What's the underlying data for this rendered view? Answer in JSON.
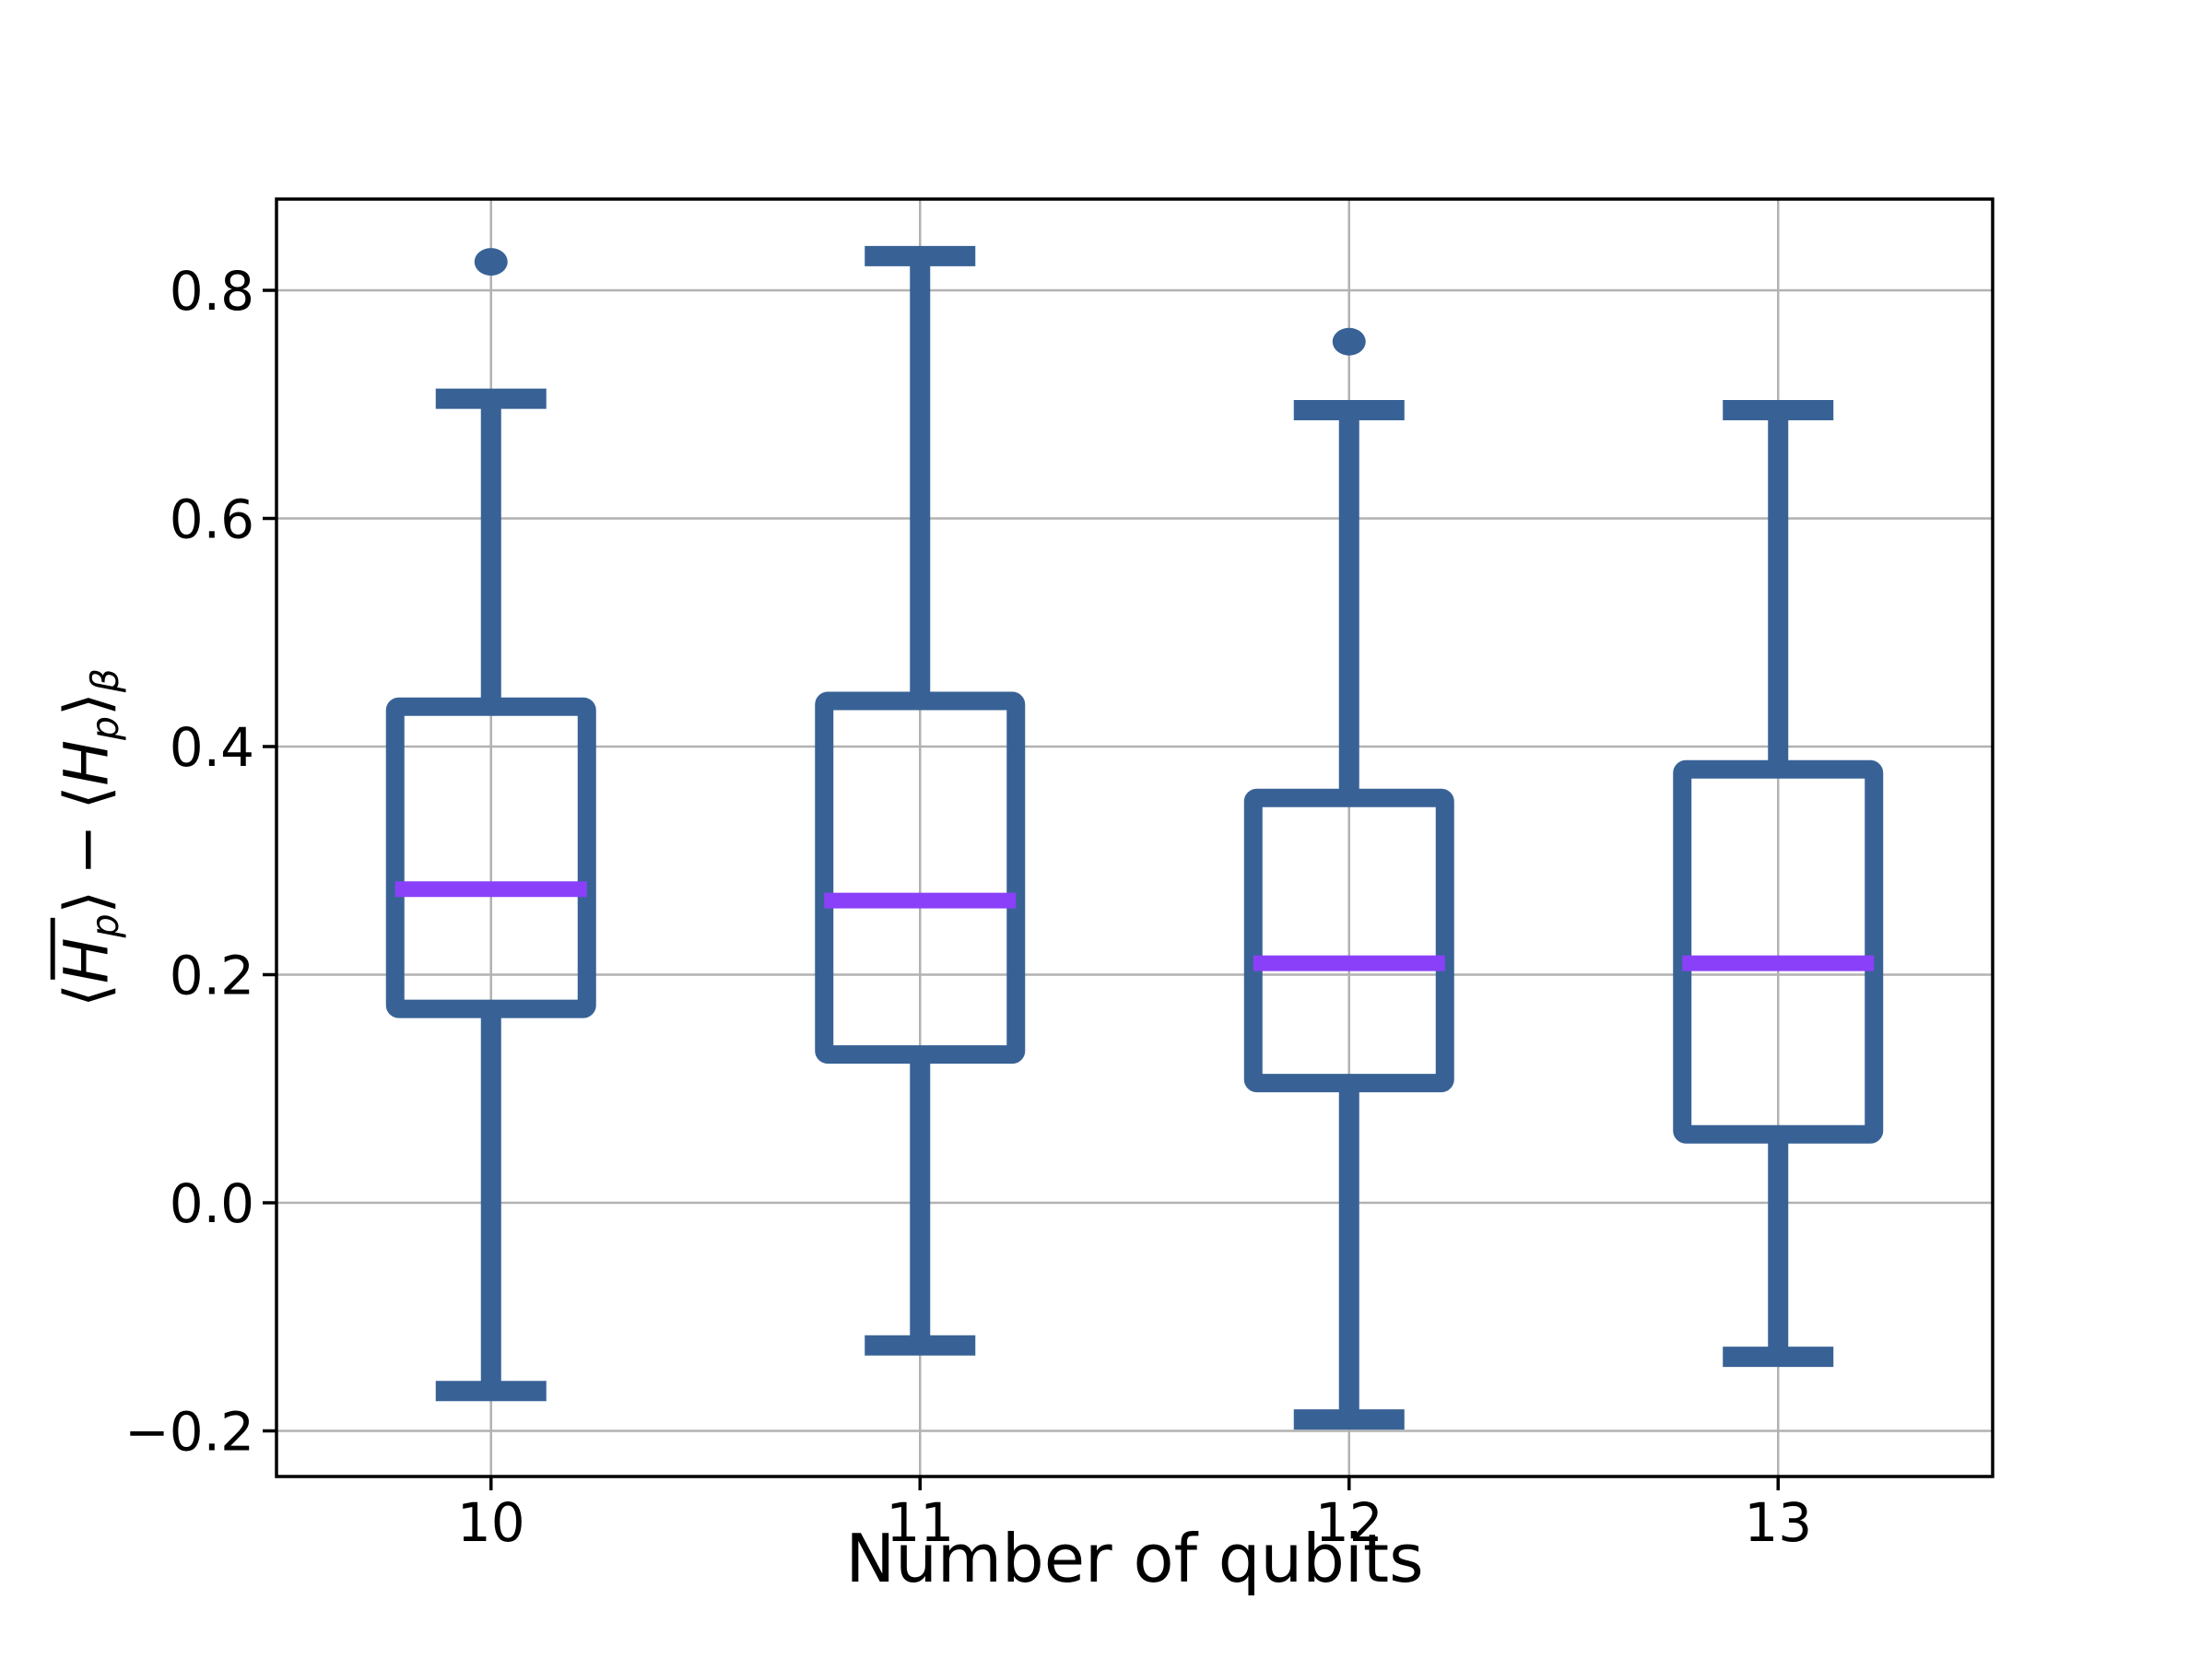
{
  "figure": {
    "background": "#ffffff"
  },
  "chart_data": {
    "type": "boxplot",
    "title": "",
    "xlabel": "Number of qubits",
    "ylabel": "⟨H̄_p⟩ − ⟨H_p⟩_β",
    "ylabel_parts": {
      "open": "⟨",
      "H": "H",
      "p": "p",
      "close": "⟩",
      "minus": "−",
      "beta": "β"
    },
    "categories": [
      "10",
      "11",
      "12",
      "13"
    ],
    "x_positions": [
      1,
      2,
      3,
      4
    ],
    "xlim": [
      0.5,
      4.5
    ],
    "ylim": [
      -0.24,
      0.88
    ],
    "yticks": [
      {
        "value": -0.2,
        "label": "−0.2"
      },
      {
        "value": 0.0,
        "label": "0.0"
      },
      {
        "value": 0.2,
        "label": "0.2"
      },
      {
        "value": 0.4,
        "label": "0.4"
      },
      {
        "value": 0.6,
        "label": "0.6"
      },
      {
        "value": 0.8,
        "label": "0.8"
      }
    ],
    "grid": {
      "show": true,
      "color": "#b2b2b2"
    },
    "boxes": [
      {
        "category": "10",
        "whislo": -0.165,
        "q1": 0.17,
        "med": 0.275,
        "q3": 0.435,
        "whishi": 0.705,
        "fliers": [
          0.825
        ]
      },
      {
        "category": "11",
        "whislo": -0.125,
        "q1": 0.13,
        "med": 0.265,
        "q3": 0.44,
        "whishi": 0.83,
        "fliers": []
      },
      {
        "category": "12",
        "whislo": -0.19,
        "q1": 0.105,
        "med": 0.21,
        "q3": 0.355,
        "whishi": 0.695,
        "fliers": [
          0.755
        ]
      },
      {
        "category": "13",
        "whislo": -0.135,
        "q1": 0.06,
        "med": 0.21,
        "q3": 0.38,
        "whishi": 0.695,
        "fliers": []
      }
    ],
    "colors": {
      "box_edge": "#386296",
      "median": "#8a40f8",
      "flier_fill": "#386296",
      "spine": "#000000",
      "text": "#000000"
    }
  }
}
